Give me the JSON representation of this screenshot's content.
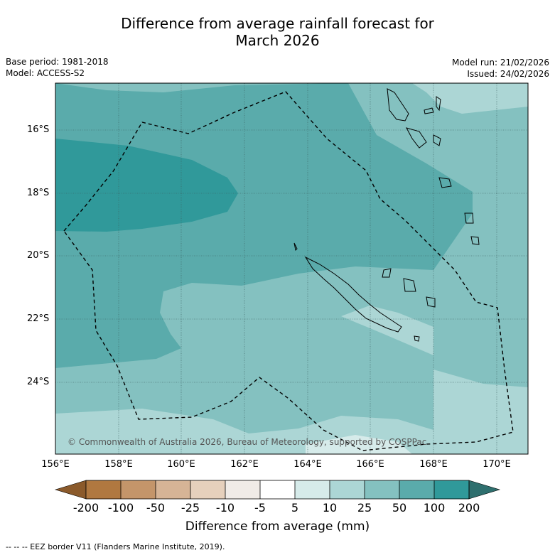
{
  "title": {
    "line1": "Difference from average rainfall forecast for",
    "line2": "March 2026"
  },
  "meta": {
    "base_period": "Base period: 1981-2018",
    "model": "Model: ACCESS-S2",
    "model_run": "Model run: 21/02/2026",
    "issued": "Issued: 24/02/2026"
  },
  "map": {
    "lat_labels": [
      "16°S",
      "18°S",
      "20°S",
      "22°S",
      "24°S"
    ],
    "lon_labels": [
      "156°E",
      "158°E",
      "160°E",
      "162°E",
      "164°E",
      "166°E",
      "168°E",
      "170°E"
    ],
    "copyright": "© Commonwealth of Australia 2026, Bureau of Meteorology, supported by COSPPac"
  },
  "colorbar": {
    "ticks": [
      "-200",
      "-100",
      "-50",
      "-25",
      "-10",
      "-5",
      "5",
      "10",
      "25",
      "50",
      "100",
      "200"
    ],
    "label": "Difference from average (mm)",
    "colors": [
      "#8b5a2b",
      "#b07840",
      "#c4956a",
      "#d6b496",
      "#e6d0bc",
      "#f0ebe7",
      "#ffffff",
      "#d6ebea",
      "#acd6d5",
      "#84c1c0",
      "#5aabab",
      "#30999a",
      "#2e6f6e"
    ]
  },
  "footer": {
    "eez": "--  --  -- EEZ border V11 (Flanders Marine Institute, 2019)."
  }
}
